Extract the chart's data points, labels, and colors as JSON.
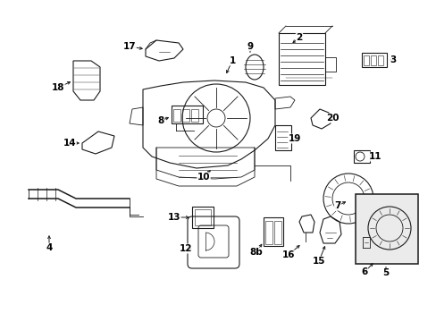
{
  "background_color": "#ffffff",
  "figure_width": 4.89,
  "figure_height": 3.6,
  "dpi": 100,
  "line_color": "#1a1a1a",
  "label_color": "#000000",
  "label_fontsize": 7.5
}
